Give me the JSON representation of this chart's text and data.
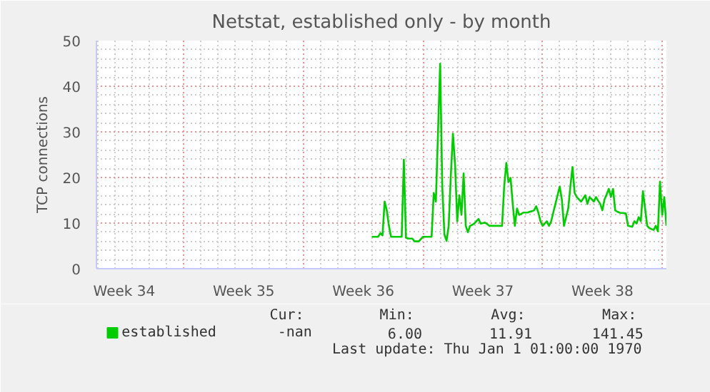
{
  "chart_data": {
    "type": "line",
    "title": "Netstat, established only - by month",
    "ylabel": "TCP connections",
    "categories": [
      null,
      null,
      null,
      null,
      null,
      null,
      null,
      null,
      null,
      null,
      null,
      null,
      "Week 34",
      null,
      null,
      null,
      null,
      null,
      null,
      null,
      null,
      null,
      null,
      null,
      null,
      null,
      null,
      null,
      null,
      null,
      null,
      null,
      null,
      null,
      null,
      null,
      null,
      null,
      null,
      null,
      null,
      null,
      null,
      null,
      null,
      null,
      null,
      null,
      null,
      null,
      null,
      null,
      null,
      null,
      null,
      null,
      null,
      null,
      null,
      null,
      null,
      null,
      null,
      null,
      null,
      null,
      null,
      null,
      "Week 35",
      null,
      null,
      null,
      null,
      null,
      null,
      null,
      null,
      null,
      null,
      null,
      null,
      null,
      null,
      null,
      null,
      null,
      null,
      null,
      null,
      null,
      null,
      null,
      null,
      null,
      null,
      null,
      null,
      null,
      null,
      null,
      null,
      null,
      null,
      null,
      null,
      null,
      null,
      null,
      null,
      null,
      null,
      null,
      null,
      null,
      null,
      null,
      null,
      null,
      null,
      null,
      null,
      null,
      null,
      null,
      "Week 36",
      null,
      null,
      null,
      null,
      null,
      null,
      null,
      null,
      null,
      null,
      null,
      null,
      null,
      null,
      null,
      null,
      null,
      null,
      null,
      null,
      null,
      null,
      null,
      null,
      null,
      null,
      null,
      null,
      null,
      null,
      null,
      null,
      null,
      null,
      null,
      null,
      null,
      null,
      null,
      null,
      null,
      null,
      null,
      null,
      null,
      null,
      null,
      null,
      null,
      null,
      null,
      null,
      null,
      null,
      null,
      "Week 37",
      null,
      null,
      null,
      null,
      null,
      null,
      null,
      null,
      null,
      null,
      null,
      null,
      null,
      null,
      null,
      null,
      null,
      null,
      null,
      null,
      null,
      null,
      null,
      null,
      null,
      null,
      null,
      null,
      null,
      null,
      null,
      null,
      null,
      null,
      null,
      null,
      null,
      null,
      null,
      null,
      null,
      null,
      null,
      null,
      null,
      null,
      null,
      null,
      null,
      null,
      null,
      null,
      null,
      null,
      null,
      "Week 38",
      null,
      null,
      null,
      null,
      null,
      null,
      null,
      null,
      null,
      null,
      null,
      null,
      null,
      null,
      null,
      null,
      null,
      null,
      null,
      null,
      null,
      null,
      null,
      null,
      null,
      null,
      null,
      null,
      null,
      null
    ],
    "series": [
      {
        "name": "established",
        "color": "#00cc00",
        "values": [
          null,
          null,
          null,
          null,
          null,
          null,
          null,
          null,
          null,
          null,
          null,
          null,
          null,
          null,
          null,
          null,
          null,
          null,
          null,
          null,
          null,
          null,
          null,
          null,
          null,
          null,
          null,
          null,
          null,
          null,
          null,
          null,
          null,
          null,
          null,
          null,
          null,
          null,
          null,
          null,
          null,
          null,
          null,
          null,
          null,
          null,
          null,
          null,
          null,
          null,
          null,
          null,
          null,
          null,
          null,
          null,
          null,
          null,
          null,
          null,
          null,
          null,
          null,
          null,
          null,
          null,
          null,
          null,
          null,
          null,
          null,
          null,
          null,
          null,
          null,
          null,
          null,
          null,
          null,
          null,
          null,
          null,
          null,
          null,
          null,
          null,
          null,
          null,
          null,
          null,
          null,
          null,
          null,
          null,
          null,
          null,
          null,
          null,
          null,
          null,
          null,
          null,
          null,
          null,
          null,
          null,
          null,
          null,
          null,
          null,
          null,
          null,
          null,
          null,
          null,
          null,
          null,
          null,
          null,
          null,
          null,
          null,
          null,
          null,
          null,
          null,
          null,
          null,
          7.0,
          7.0,
          7.0,
          7.0,
          7.8,
          7.3,
          14.7,
          12.8,
          9.4,
          7.0,
          7.0,
          7.0,
          7.0,
          7.0,
          7.0,
          23.9,
          6.8,
          6.6,
          6.6,
          6.6,
          6.0,
          6.0,
          6.0,
          6.5,
          7.0,
          7.0,
          7.0,
          7.0,
          7.0,
          16.6,
          14.7,
          29.8,
          44.9,
          18.0,
          7.5,
          6.1,
          9.4,
          20.4,
          29.6,
          22.8,
          10.4,
          16.1,
          11.8,
          20.9,
          9.4,
          8.0,
          9.4,
          9.6,
          9.9,
          10.4,
          10.9,
          9.9,
          10.0,
          10.1,
          9.8,
          9.4,
          9.4,
          9.4,
          9.4,
          9.4,
          9.4,
          9.4,
          18.0,
          23.2,
          19.0,
          19.9,
          14.2,
          9.4,
          13.2,
          11.8,
          12.0,
          12.3,
          12.3,
          12.3,
          12.5,
          12.6,
          12.8,
          13.7,
          12.3,
          10.4,
          9.4,
          9.9,
          10.4,
          9.4,
          10.4,
          12.3,
          14.2,
          16.1,
          18.0,
          15.2,
          9.4,
          11.3,
          13.2,
          18.0,
          22.3,
          16.6,
          15.7,
          15.2,
          14.7,
          15.4,
          16.1,
          14.2,
          15.7,
          15.2,
          14.7,
          15.7,
          14.9,
          14.2,
          12.8,
          15.2,
          16.3,
          17.5,
          15.7,
          17.5,
          12.8,
          12.5,
          12.3,
          12.2,
          12.2,
          12.1,
          9.4,
          9.3,
          9.2,
          10.4,
          9.9,
          11.3,
          10.4,
          17.0,
          13.2,
          9.4,
          8.9,
          8.7,
          8.5,
          9.4,
          8.2,
          19.1,
          11.8,
          15.7,
          9.4
        ]
      }
    ],
    "ylim": [
      0,
      50
    ],
    "yticks": [
      0,
      10,
      20,
      30,
      40,
      50
    ],
    "grid": true,
    "legend": "bottom left",
    "line_style": "solid",
    "marker": "none",
    "annotations": [
      "Cur:",
      "Min:",
      "Avg:",
      "Max:",
      "-nan",
      "6.00",
      "11.91",
      "141.45",
      "Last update: Thu Jan  1 01:00:00 1970"
    ]
  }
}
